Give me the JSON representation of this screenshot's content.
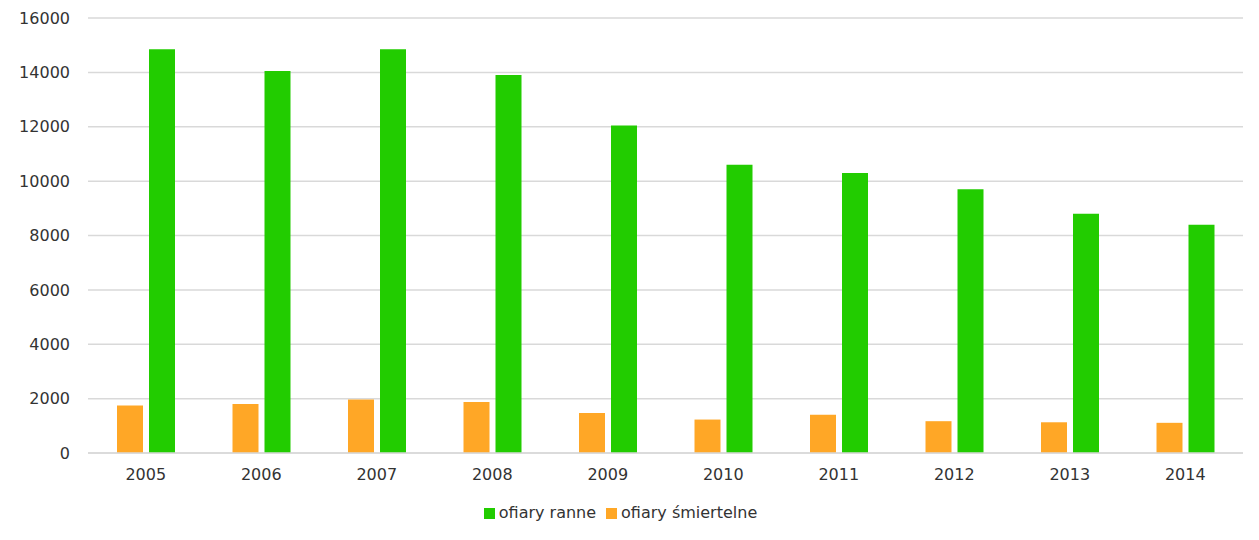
{
  "chart_data": {
    "type": "bar",
    "categories": [
      "2005",
      "2006",
      "2007",
      "2008",
      "2009",
      "2010",
      "2011",
      "2012",
      "2013",
      "2014"
    ],
    "series": [
      {
        "name": "ofiary śmiertelne",
        "color": "#ffa726",
        "values": [
          1750,
          1800,
          1970,
          1880,
          1470,
          1230,
          1410,
          1170,
          1130,
          1110
        ]
      },
      {
        "name": "ofiary ranne",
        "color": "#22cc00",
        "values": [
          14850,
          14050,
          14850,
          13900,
          12050,
          10600,
          10300,
          9700,
          8800,
          8400
        ]
      }
    ],
    "ylim": [
      0,
      16000
    ],
    "yticks": [
      0,
      2000,
      4000,
      6000,
      8000,
      10000,
      12000,
      14000,
      16000
    ],
    "grid": true,
    "legend": "bottom"
  }
}
